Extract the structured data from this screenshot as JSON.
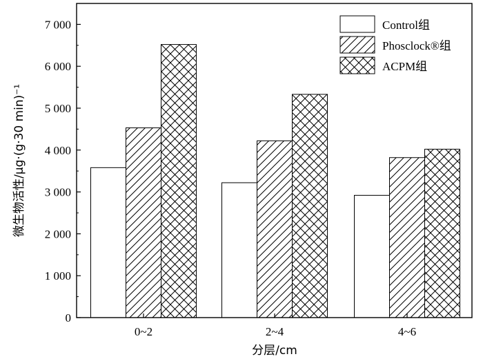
{
  "chart_data": {
    "type": "bar",
    "categories": [
      "0~2",
      "2~4",
      "4~6"
    ],
    "series": [
      {
        "name": "Control组",
        "values": [
          3580,
          3220,
          2920
        ],
        "pattern": "none"
      },
      {
        "name": "Phosclock®组",
        "values": [
          4530,
          4220,
          3820
        ],
        "pattern": "diagonal-hatch"
      },
      {
        "name": "ACPM组",
        "values": [
          6520,
          5330,
          4020
        ],
        "pattern": "cross-hatch"
      }
    ],
    "xlabel": "分层/cm",
    "ylabel": "微生物活性/μg·(g·30 min)⁻¹",
    "ylim": [
      0,
      7500
    ],
    "yticks": [
      0,
      1000,
      2000,
      3000,
      4000,
      5000,
      6000,
      7000
    ],
    "ytick_labels": [
      "0",
      "1 000",
      "2 000",
      "3 000",
      "4 000",
      "5 000",
      "6 000",
      "7 000"
    ],
    "legend": {
      "placement": "top-right",
      "labels": [
        "Control组",
        "Phosclock®组",
        "ACPM组"
      ]
    },
    "grid": false,
    "colors": {
      "bar_fill": "#ffffff",
      "stroke": "#000000"
    }
  }
}
